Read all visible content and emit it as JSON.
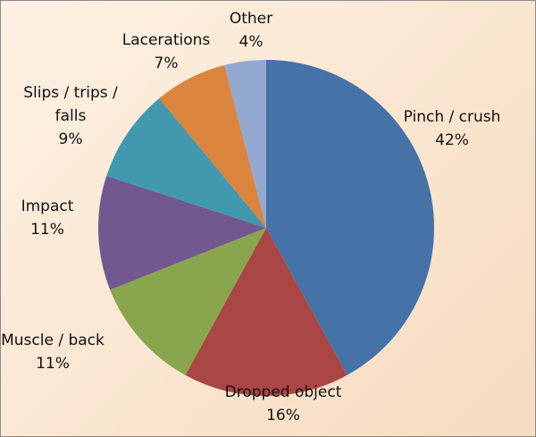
{
  "chart_data": {
    "type": "pie",
    "categories": [
      "Pinch / crush",
      "Dropped object",
      "Muscle / back",
      "Impact",
      "Slips / trips / falls",
      "Lacerations",
      "Other"
    ],
    "values": [
      42,
      16,
      11,
      11,
      9,
      7,
      4
    ],
    "value_labels": [
      "42%",
      "16%",
      "11%",
      "11%",
      "9%",
      "7%",
      "4%"
    ],
    "colors": [
      "#4572a7",
      "#aa4643",
      "#89a54e",
      "#71588f",
      "#4198af",
      "#db843d",
      "#93a9cf"
    ]
  }
}
